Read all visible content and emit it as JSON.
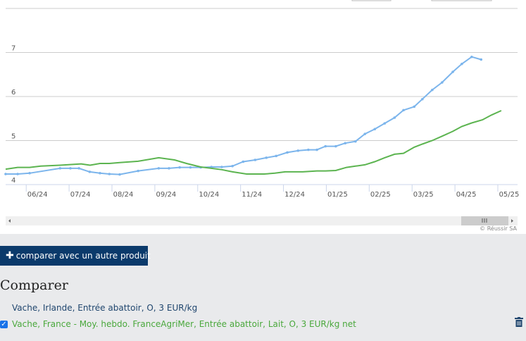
{
  "chart_data": {
    "type": "line",
    "xlim": [
      -0.48,
      11.46
    ],
    "ylim": [
      4,
      8
    ],
    "xticks": [
      {
        "value": 0,
        "label": "06/24"
      },
      {
        "value": 1,
        "label": "07/24"
      },
      {
        "value": 2,
        "label": "08/24"
      },
      {
        "value": 3,
        "label": "09/24"
      },
      {
        "value": 4,
        "label": "10/24"
      },
      {
        "value": 5,
        "label": "11/24"
      },
      {
        "value": 6,
        "label": "12/24"
      },
      {
        "value": 7,
        "label": "01/25"
      },
      {
        "value": 8,
        "label": "02/25"
      },
      {
        "value": 9,
        "label": "03/25"
      },
      {
        "value": 10,
        "label": "04/25"
      },
      {
        "value": 11,
        "label": "05/25"
      }
    ],
    "yticks": [
      4,
      5,
      6,
      7
    ],
    "grid": true,
    "series": [
      {
        "name": "Vache, Irlande, Entrée abattoir, O, 3 EUR/kg",
        "color": "#7cb5ec",
        "markers": true,
        "x": [
          -0.48,
          -0.2,
          0.08,
          0.79,
          1.03,
          1.23,
          1.48,
          1.72,
          1.94,
          2.18,
          2.61,
          3.09,
          3.33,
          3.58,
          3.83,
          4.07,
          4.32,
          4.56,
          4.81,
          5.06,
          5.34,
          5.6,
          5.83,
          6.09,
          6.34,
          6.58,
          6.78,
          6.98,
          7.22,
          7.44,
          7.68,
          7.9,
          8.13,
          8.36,
          8.59,
          8.8,
          9.05,
          9.24,
          9.47,
          9.7,
          9.95,
          10.16,
          10.39,
          10.61
        ],
        "values": [
          4.24,
          4.24,
          4.26,
          4.37,
          4.37,
          4.37,
          4.29,
          4.26,
          4.24,
          4.23,
          4.31,
          4.37,
          4.37,
          4.39,
          4.39,
          4.39,
          4.4,
          4.4,
          4.42,
          4.52,
          4.56,
          4.61,
          4.65,
          4.73,
          4.77,
          4.79,
          4.79,
          4.87,
          4.87,
          4.94,
          4.98,
          5.15,
          5.26,
          5.39,
          5.52,
          5.69,
          5.77,
          5.94,
          6.15,
          6.32,
          6.56,
          6.74,
          6.9,
          6.84
        ]
      },
      {
        "name": "Vache, France - Moy. hebdo. FranceAgriMer, Entrée abattoir, Lait, O, 3 EUR/kg net",
        "color": "#5cb450",
        "markers": false,
        "x": [
          -0.48,
          -0.2,
          0.08,
          0.34,
          0.79,
          1.28,
          1.49,
          1.72,
          1.94,
          2.18,
          2.61,
          3.09,
          3.46,
          3.74,
          4.07,
          4.32,
          4.56,
          4.81,
          5.14,
          5.55,
          5.8,
          6.04,
          6.45,
          6.78,
          6.98,
          7.22,
          7.47,
          7.68,
          7.9,
          8.13,
          8.36,
          8.59,
          8.8,
          9.05,
          9.24,
          9.47,
          9.7,
          9.95,
          10.16,
          10.39,
          10.64,
          10.85,
          11.08
        ],
        "values": [
          4.35,
          4.39,
          4.39,
          4.42,
          4.44,
          4.47,
          4.44,
          4.48,
          4.48,
          4.5,
          4.53,
          4.61,
          4.56,
          4.48,
          4.4,
          4.37,
          4.34,
          4.29,
          4.24,
          4.24,
          4.26,
          4.29,
          4.29,
          4.31,
          4.31,
          4.32,
          4.39,
          4.42,
          4.45,
          4.52,
          4.61,
          4.69,
          4.71,
          4.85,
          4.92,
          5.0,
          5.1,
          5.21,
          5.32,
          5.4,
          5.47,
          5.58,
          5.68
        ]
      }
    ]
  },
  "credit": "© Réussir SA",
  "button": "comparer avec un autre produit",
  "heading": "Comparer"
}
